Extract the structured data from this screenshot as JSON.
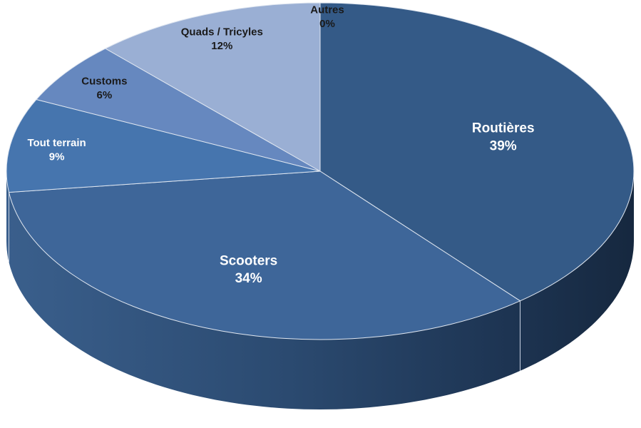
{
  "chart_data": {
    "type": "pie",
    "style": "3d",
    "legend": "none",
    "slices": [
      {
        "label": "Routières",
        "value": 39,
        "display": "39%",
        "color": "#345a87",
        "label_color": "#ffffff"
      },
      {
        "label": "Scooters",
        "value": 34,
        "display": "34%",
        "color": "#3e6699",
        "label_color": "#ffffff"
      },
      {
        "label": "Tout terrain",
        "value": 9,
        "display": "9%",
        "color": "#4675ae",
        "label_color": "#ffffff"
      },
      {
        "label": "Customs",
        "value": 6,
        "display": "6%",
        "color": "#6688bf",
        "label_color": "#1a1a1a"
      },
      {
        "label": "Quads / Tricyles",
        "value": 12,
        "display": "12%",
        "color": "#9aafd4",
        "label_color": "#1a1a1a"
      },
      {
        "label": "Autres",
        "value": 0,
        "display": "0%",
        "color": "#b8c6e0",
        "label_color": "#1a1a1a"
      }
    ]
  }
}
